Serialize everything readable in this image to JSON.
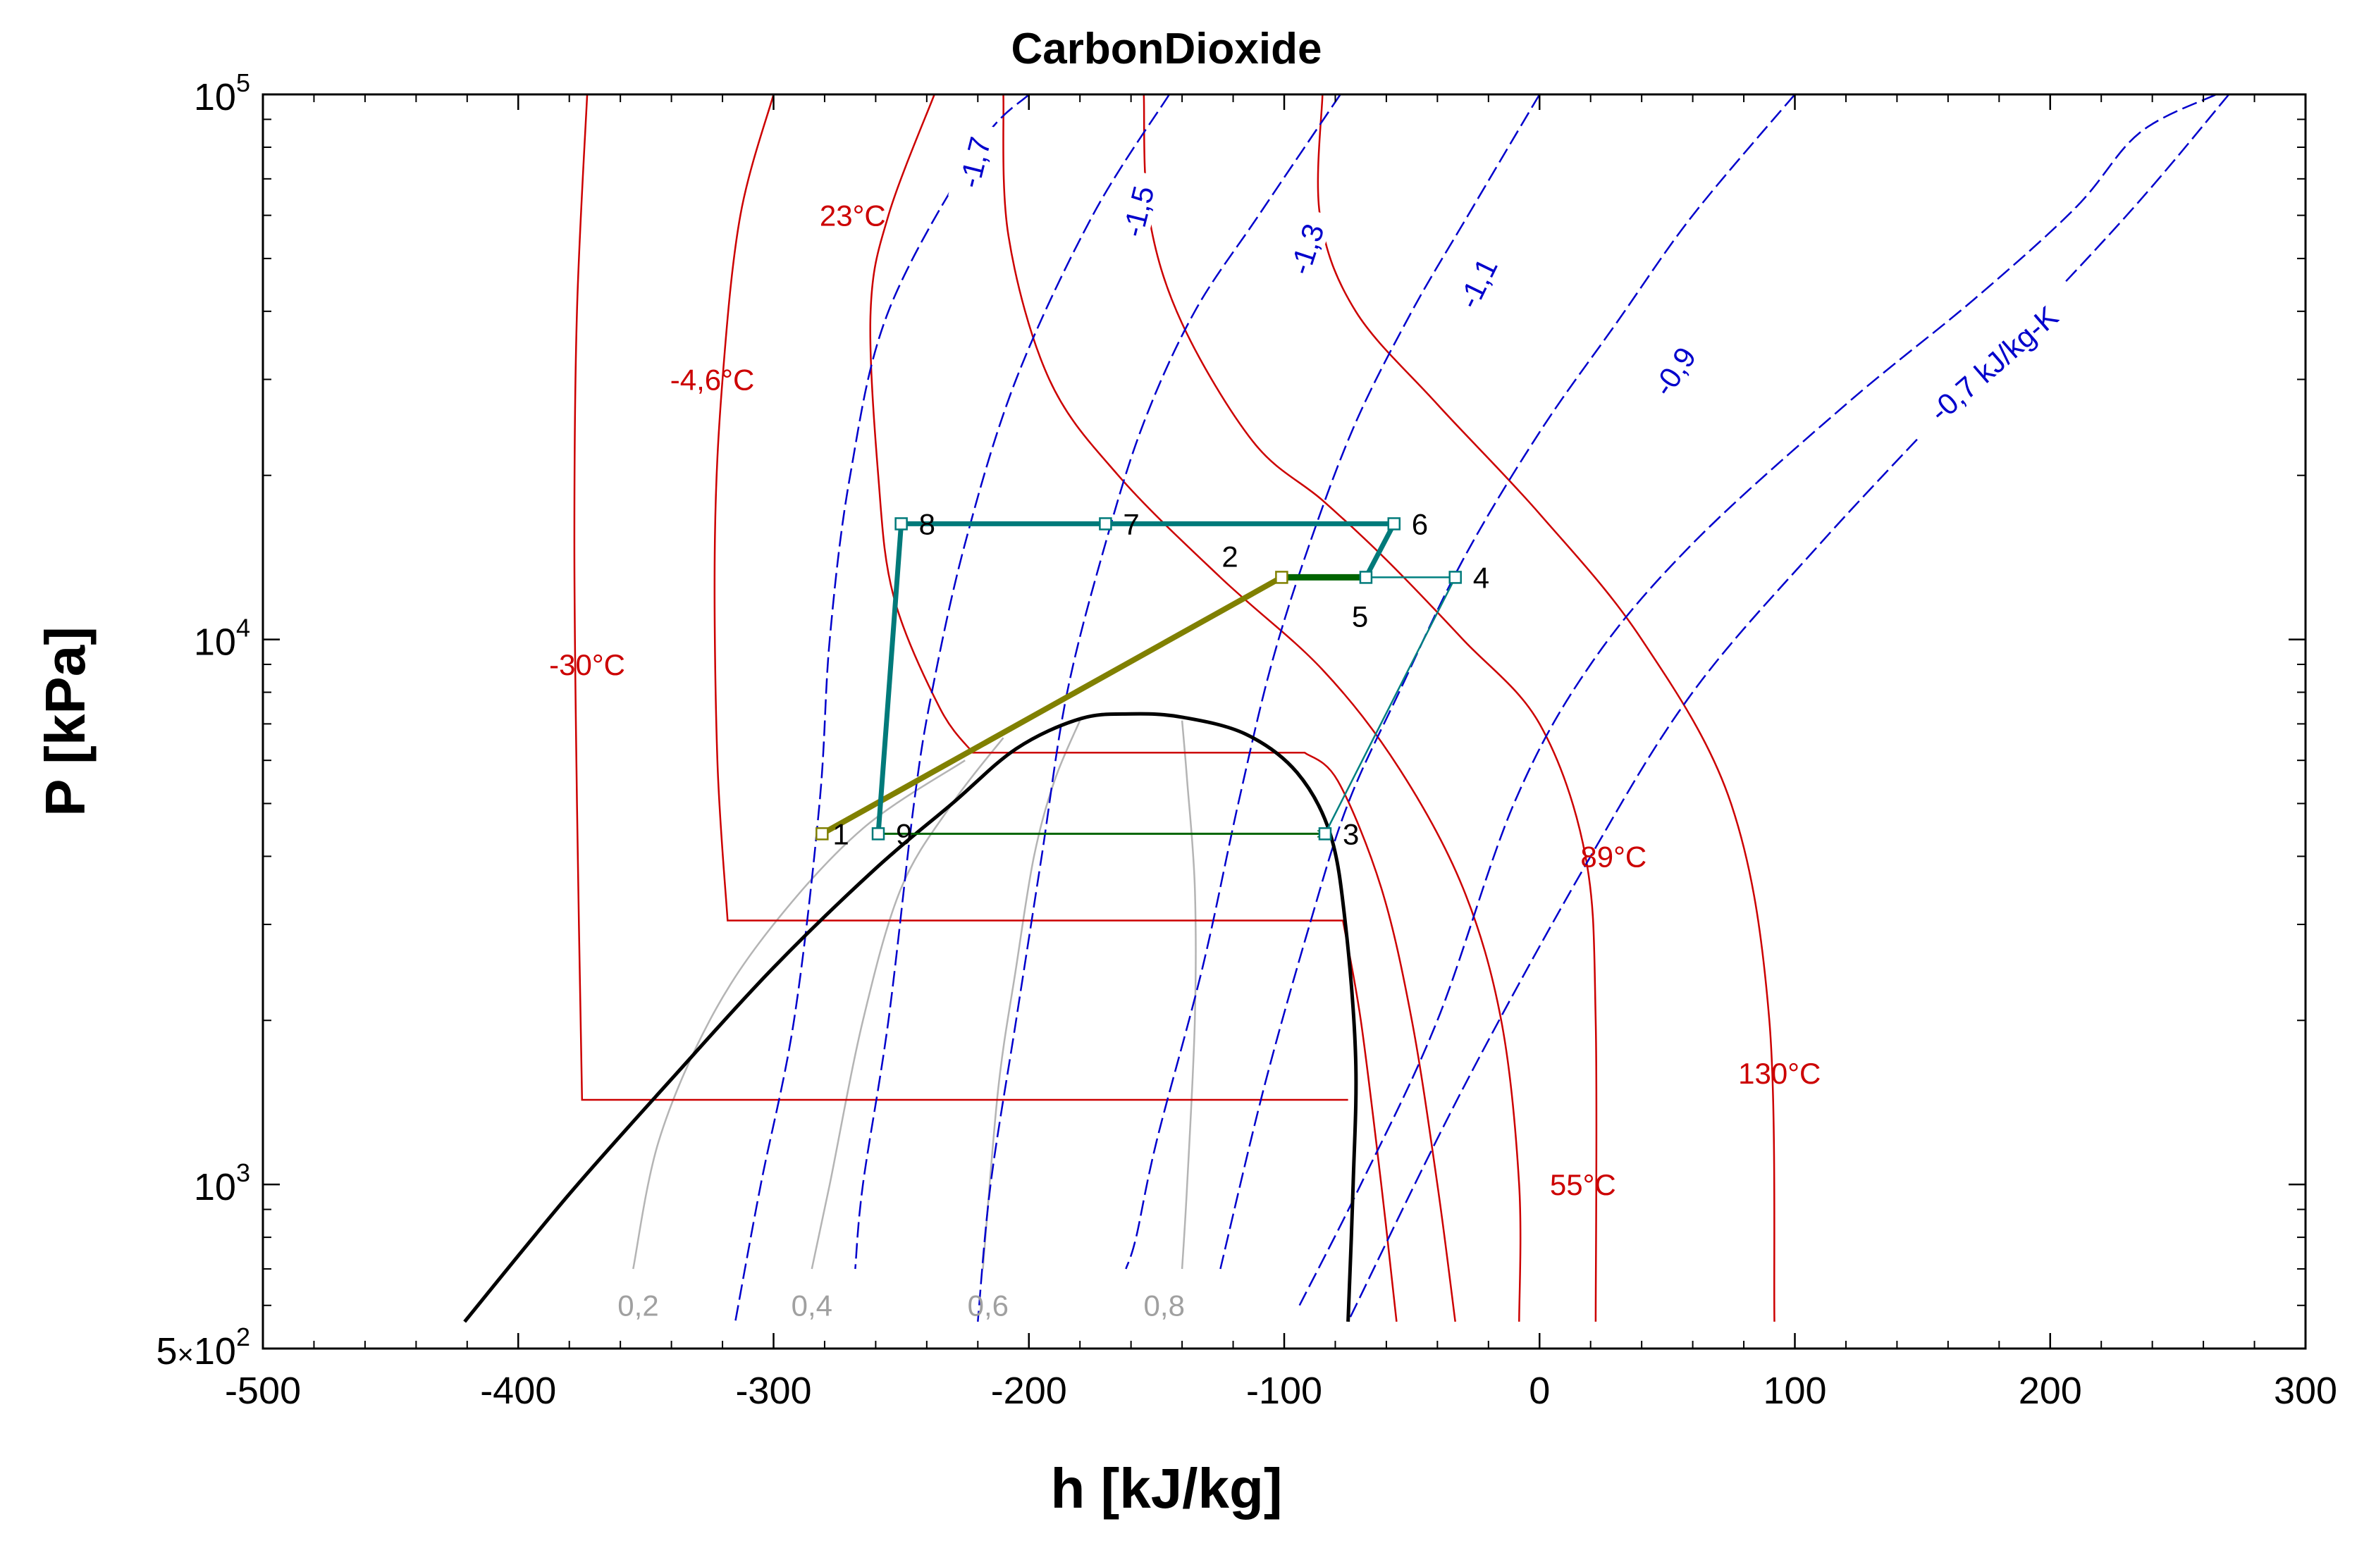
{
  "chart_data": {
    "type": "line",
    "title": "CarbonDioxide",
    "xlabel": "h [kJ/kg]",
    "ylabel": "P [kPa]",
    "xlim": [
      -500,
      300
    ],
    "ylim": [
      500,
      100000
    ],
    "yscale": "log",
    "grid": false,
    "x_ticks": [
      -500,
      -400,
      -300,
      -200,
      -100,
      0,
      100,
      200,
      300
    ],
    "x_tick_labels": [
      "-500",
      "-400",
      "-300",
      "-200",
      "-100",
      "0",
      "100",
      "200",
      "300"
    ],
    "y_ticks": [
      {
        "value": 100000,
        "base": "10",
        "exp": "5"
      },
      {
        "value": 10000,
        "base": "10",
        "exp": "4"
      },
      {
        "value": 1000,
        "base": "10",
        "exp": "3"
      },
      {
        "value": 500,
        "mant": "5",
        "times": "×",
        "base": "10",
        "exp": "2"
      }
    ],
    "colors": {
      "isotherm": "#cc0000",
      "isentrope": "#0000cc",
      "quality": "#b4b4b4",
      "dome": "#000000",
      "teal": "#007a7a",
      "olive": "#808000",
      "green": "#006400"
    },
    "saturation_dome": [
      [
        -421,
        560
      ],
      [
        -380,
        960
      ],
      [
        -340,
        1560
      ],
      [
        -300,
        2500
      ],
      [
        -260,
        3800
      ],
      [
        -230,
        5000
      ],
      [
        -205,
        6300
      ],
      [
        -180,
        7150
      ],
      [
        -160,
        7300
      ],
      [
        -140,
        7200
      ],
      [
        -115,
        6700
      ],
      [
        -95,
        5700
      ],
      [
        -82,
        4400
      ],
      [
        -76,
        3000
      ],
      [
        -72,
        1700
      ],
      [
        -73,
        1000
      ],
      [
        -75,
        560
      ]
    ],
    "isotherms": [
      {
        "label": "-30°C",
        "label_at": [
          -373,
          9000
        ],
        "points": [
          [
            -373,
            100000
          ],
          [
            -377,
            40000
          ],
          [
            -378,
            15000
          ],
          [
            -377,
            5000
          ],
          [
            -375,
            1430
          ],
          [
            -75,
            1430
          ]
        ]
      },
      {
        "label": "-4,6°C",
        "label_at": [
          -324,
          30000
        ],
        "points": [
          [
            -300,
            100000
          ],
          [
            -313,
            60000
          ],
          [
            -320,
            30000
          ],
          [
            -323,
            15000
          ],
          [
            -322,
            6000
          ],
          [
            -318,
            3050
          ],
          [
            -77,
            3050
          ],
          [
            -70,
            2000
          ],
          [
            -62,
            1000
          ],
          [
            -56,
            560
          ]
        ]
      },
      {
        "label": "23°C",
        "label_at": [
          -269,
          60000
        ],
        "points": [
          [
            -237,
            100000
          ],
          [
            -255,
            60000
          ],
          [
            -262,
            40000
          ],
          [
            -259,
            20000
          ],
          [
            -253,
            12000
          ],
          [
            -235,
            7500
          ],
          [
            -222,
            6200
          ],
          [
            -92,
            6200
          ],
          [
            -79,
            5500
          ],
          [
            -62,
            3500
          ],
          [
            -50,
            2000
          ],
          [
            -40,
            1000
          ],
          [
            -33,
            560
          ]
        ]
      },
      {
        "label": "55°C",
        "label_at": [
          17,
          1000
        ],
        "points": [
          [
            -210,
            100000
          ],
          [
            -208,
            55000
          ],
          [
            -192,
            30000
          ],
          [
            -165,
            20000
          ],
          [
            -125,
            13000
          ],
          [
            -85,
            8800
          ],
          [
            -55,
            5800
          ],
          [
            -30,
            3500
          ],
          [
            -15,
            2000
          ],
          [
            -8,
            1000
          ],
          [
            -8,
            560
          ]
        ]
      },
      {
        "label": "89°C",
        "label_at": [
          29,
          4000
        ],
        "points": [
          [
            -155,
            100000
          ],
          [
            -153,
            60000
          ],
          [
            -140,
            38000
          ],
          [
            -112,
            23000
          ],
          [
            -85,
            18000
          ],
          [
            -60,
            14000
          ],
          [
            -30,
            10000
          ],
          [
            0,
            7000
          ],
          [
            18,
            4000
          ],
          [
            22,
            2000
          ],
          [
            22,
            560
          ]
        ]
      },
      {
        "label": "130°C",
        "label_at": [
          94,
          1600
        ],
        "points": [
          [
            -85,
            100000
          ],
          [
            -86,
            60000
          ],
          [
            -72,
            40000
          ],
          [
            -40,
            27000
          ],
          [
            0,
            17000
          ],
          [
            40,
            10000
          ],
          [
            75,
            5000
          ],
          [
            90,
            2000
          ],
          [
            92,
            560
          ]
        ]
      }
    ],
    "isentropes": [
      {
        "label": "-1,7",
        "label_at": [
          -221,
          75000
        ],
        "angle": -76,
        "points": [
          [
            -200,
            100000
          ],
          [
            -220,
            80000
          ],
          [
            -255,
            40000
          ],
          [
            -270,
            20000
          ],
          [
            -278,
            10000
          ],
          [
            -282,
            5000
          ],
          [
            -292,
            2000
          ],
          [
            -305,
            1000
          ],
          [
            -315,
            560
          ]
        ]
      },
      {
        "label": "-1,5",
        "label_at": [
          -157,
          61000
        ],
        "angle": -76,
        "points": [
          [
            -145,
            100000
          ],
          [
            -175,
            60000
          ],
          [
            -205,
            30000
          ],
          [
            -225,
            15000
          ],
          [
            -238,
            8000
          ],
          [
            -245,
            5000
          ],
          [
            -255,
            2000
          ],
          [
            -265,
            1000
          ],
          [
            -268,
            700
          ]
        ]
      },
      {
        "label": "-1,3",
        "label_at": [
          -91,
          52000
        ],
        "angle": -72,
        "points": [
          [
            -78,
            100000
          ],
          [
            -110,
            60000
          ],
          [
            -135,
            40000
          ],
          [
            -155,
            25000
          ],
          [
            -170,
            15000
          ],
          [
            -185,
            8000
          ],
          [
            -195,
            4000
          ],
          [
            -205,
            2000
          ],
          [
            -215,
            1000
          ],
          [
            -220,
            560
          ]
        ]
      },
      {
        "label": "-1,1",
        "label_at": [
          -24,
          45000
        ],
        "angle": -64,
        "points": [
          [
            0,
            100000
          ],
          [
            -28,
            60000
          ],
          [
            -50,
            40000
          ],
          [
            -72,
            25000
          ],
          [
            -90,
            15000
          ],
          [
            -105,
            9000
          ],
          [
            -118,
            5000
          ],
          [
            -132,
            2500
          ],
          [
            -150,
            1200
          ],
          [
            -158,
            800
          ],
          [
            -162,
            700
          ]
        ]
      },
      {
        "label": "-0,9",
        "label_at": [
          53,
          31000
        ],
        "angle": -56,
        "points": [
          [
            100,
            100000
          ],
          [
            60,
            60000
          ],
          [
            30,
            38000
          ],
          [
            0,
            24000
          ],
          [
            -30,
            14000
          ],
          [
            -55,
            8000
          ],
          [
            -75,
            5000
          ],
          [
            -90,
            3000
          ],
          [
            -108,
            1500
          ],
          [
            -125,
            700
          ]
        ]
      },
      {
        "label": "-0,7 kJ/kg-K",
        "label_at": [
          178,
          32000
        ],
        "angle": -41,
        "points": [
          [
            265,
            100000
          ],
          [
            235,
            85000
          ],
          [
            210,
            62000
          ],
          [
            170,
            42000
          ],
          [
            120,
            27000
          ],
          [
            60,
            15000
          ],
          [
            20,
            9000
          ],
          [
            -10,
            5000
          ],
          [
            -40,
            2000
          ],
          [
            -70,
            1000
          ],
          [
            -94,
            600
          ]
        ]
      },
      {
        "label": "",
        "label_at": [
          0,
          0
        ],
        "angle": 0,
        "points": [
          [
            270,
            100000
          ],
          [
            230,
            60000
          ],
          [
            170,
            30000
          ],
          [
            110,
            15000
          ],
          [
            60,
            8000
          ],
          [
            20,
            4000
          ],
          [
            -30,
            1500
          ],
          [
            -75,
            560
          ]
        ]
      }
    ],
    "quality_lines": [
      {
        "label": "0,2",
        "label_at": [
          -353,
          600
        ],
        "points": [
          [
            -225,
            6000
          ],
          [
            -265,
            4500
          ],
          [
            -300,
            3000
          ],
          [
            -325,
            2000
          ],
          [
            -345,
            1200
          ],
          [
            -355,
            700
          ]
        ]
      },
      {
        "label": "0,4",
        "label_at": [
          -285,
          600
        ],
        "points": [
          [
            -210,
            6600
          ],
          [
            -230,
            5000
          ],
          [
            -250,
            3500
          ],
          [
            -265,
            2000
          ],
          [
            -278,
            1000
          ],
          [
            -285,
            700
          ]
        ]
      },
      {
        "label": "0,6",
        "label_at": [
          -216,
          600
        ],
        "points": [
          [
            -180,
            7100
          ],
          [
            -190,
            5500
          ],
          [
            -198,
            4000
          ],
          [
            -205,
            2500
          ],
          [
            -212,
            1500
          ],
          [
            -218,
            700
          ]
        ]
      },
      {
        "label": "0,8",
        "label_at": [
          -147,
          600
        ],
        "points": [
          [
            -140,
            7100
          ],
          [
            -138,
            5500
          ],
          [
            -135,
            3500
          ],
          [
            -135,
            2000
          ],
          [
            -138,
            1000
          ],
          [
            -140,
            700
          ]
        ]
      }
    ],
    "cycle": {
      "points": [
        {
          "label": "1",
          "h": -281,
          "P": 4400,
          "color": "#808000",
          "label_dx": 15,
          "label_dy": 15
        },
        {
          "label": "2",
          "h": -101,
          "P": 13000,
          "color": "#808000",
          "label_dx": -85,
          "label_dy": -15
        },
        {
          "label": "3",
          "h": -84,
          "P": 4400,
          "color": "#007a7a",
          "label_dx": 25,
          "label_dy": 15
        },
        {
          "label": "4",
          "h": -33,
          "P": 13000,
          "color": "#007a7a",
          "label_dx": 25,
          "label_dy": 15
        },
        {
          "label": "5",
          "h": -68,
          "P": 13000,
          "color": "#007a7a",
          "label_dx": -20,
          "label_dy": 70
        },
        {
          "label": "6",
          "h": -57,
          "P": 16300,
          "color": "#007a7a",
          "label_dx": 25,
          "label_dy": 15
        },
        {
          "label": "7",
          "h": -170,
          "P": 16300,
          "color": "#007a7a",
          "label_dx": 25,
          "label_dy": 15
        },
        {
          "label": "8",
          "h": -250,
          "P": 16300,
          "color": "#007a7a",
          "label_dx": 25,
          "label_dy": 15
        },
        {
          "label": "9",
          "h": -259,
          "P": 4400,
          "color": "#007a7a",
          "label_dx": 25,
          "label_dy": 15
        }
      ],
      "segments": [
        {
          "from": "1",
          "to": "2",
          "color": "#808000",
          "width": 8
        },
        {
          "from": "9",
          "to": "3",
          "color": "#006400",
          "width": 3,
          "arrow": true
        },
        {
          "from": "3",
          "to": "4",
          "color": "#008080",
          "width": 2.5
        },
        {
          "from": "4",
          "to": "5",
          "color": "#008080",
          "width": 2.5
        },
        {
          "from": "2",
          "to": "5",
          "color": "#006400",
          "width": 9
        },
        {
          "from": "5",
          "to": "6",
          "color": "#007a7a",
          "width": 7
        },
        {
          "from": "6",
          "to": "7",
          "color": "#007a7a",
          "width": 7
        },
        {
          "from": "7",
          "to": "8",
          "color": "#007a7a",
          "width": 7
        },
        {
          "from": "8",
          "to": "9",
          "color": "#007a7a",
          "width": 7
        }
      ]
    }
  }
}
